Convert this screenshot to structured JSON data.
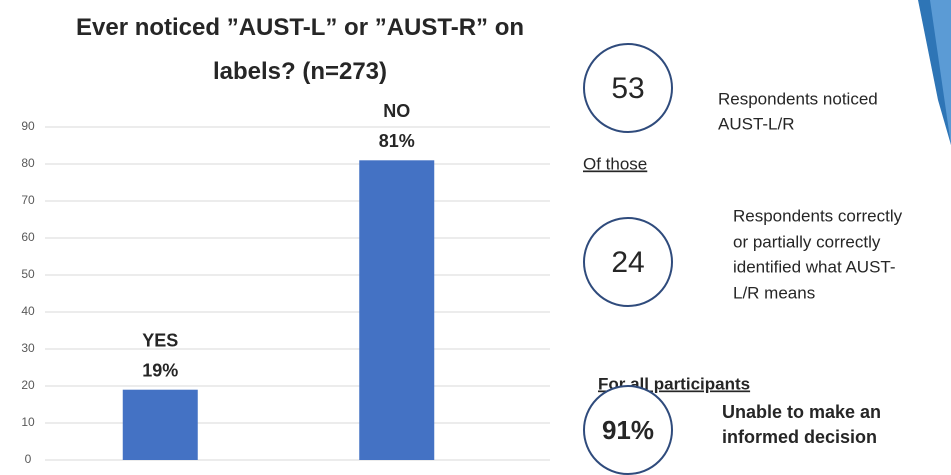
{
  "chart_data": {
    "type": "bar",
    "title": "Ever noticed ”AUST-L” or ”AUST-R” on labels?  (n=273)",
    "categories": [
      "YES",
      "NO"
    ],
    "values": [
      19,
      81
    ],
    "value_labels": [
      "19%",
      "81%"
    ],
    "color": "#4472c4",
    "ylim": [
      0,
      90
    ],
    "yticks": [
      0,
      10,
      20,
      30,
      40,
      50,
      60,
      70,
      80,
      90
    ],
    "grid": true
  },
  "panel": {
    "noticed": {
      "number": "53",
      "text": [
        "Respondents noticed",
        "AUST-L/R"
      ]
    },
    "of_those": "Of those",
    "identified": {
      "number": "24",
      "text": [
        "Respondents correctly",
        "or partially correctly",
        "identified what AUST-",
        "L/R means"
      ]
    },
    "all_heading": "For all participants",
    "unable": {
      "number": "91%",
      "text": [
        "Unable to make an",
        "informed decision"
      ]
    }
  }
}
